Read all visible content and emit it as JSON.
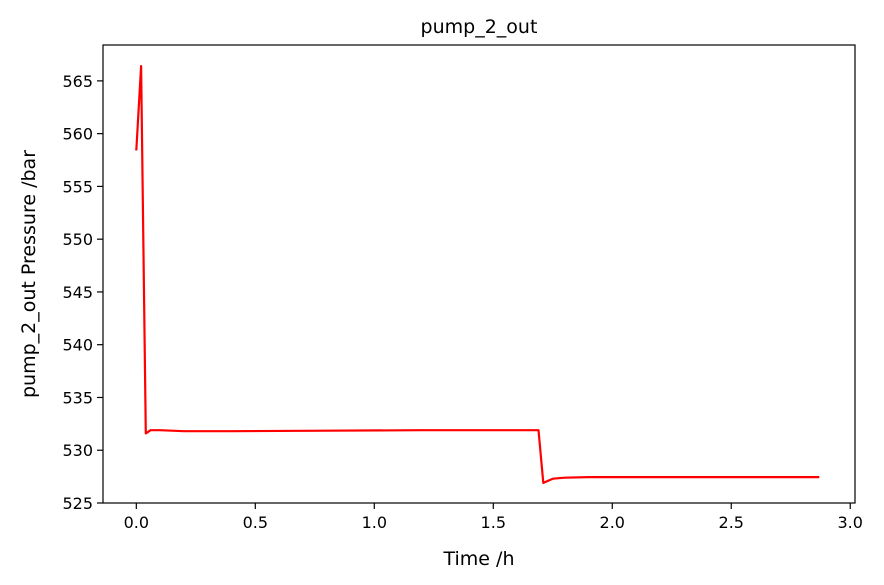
{
  "chart_data": {
    "type": "line",
    "title": "pump_2_out",
    "xlabel": "Time /h",
    "ylabel": "pump_2_out Pressure /bar",
    "xlim": [
      -0.14,
      3.02
    ],
    "ylim": [
      525,
      568.4
    ],
    "xticks": [
      0.0,
      0.5,
      1.0,
      1.5,
      2.0,
      2.5,
      3.0
    ],
    "xtick_labels": [
      "0.0",
      "0.5",
      "1.0",
      "1.5",
      "2.0",
      "2.5",
      "3.0"
    ],
    "yticks": [
      525,
      530,
      535,
      540,
      545,
      550,
      555,
      560,
      565
    ],
    "ytick_labels": [
      "525",
      "530",
      "535",
      "540",
      "545",
      "550",
      "555",
      "560",
      "565"
    ],
    "grid": false,
    "legend": "none",
    "series": [
      {
        "color": "#ff0000",
        "x": [
          0.0,
          0.02,
          0.04,
          0.06,
          0.1,
          0.2,
          0.4,
          0.8,
          1.2,
          1.5,
          1.69,
          1.71,
          1.75,
          1.8,
          1.9,
          2.0,
          2.5,
          2.87
        ],
        "y": [
          558.4,
          566.4,
          531.6,
          531.9,
          531.9,
          531.8,
          531.8,
          531.85,
          531.9,
          531.9,
          531.9,
          526.9,
          527.3,
          527.4,
          527.45,
          527.45,
          527.45,
          527.45
        ]
      }
    ]
  }
}
